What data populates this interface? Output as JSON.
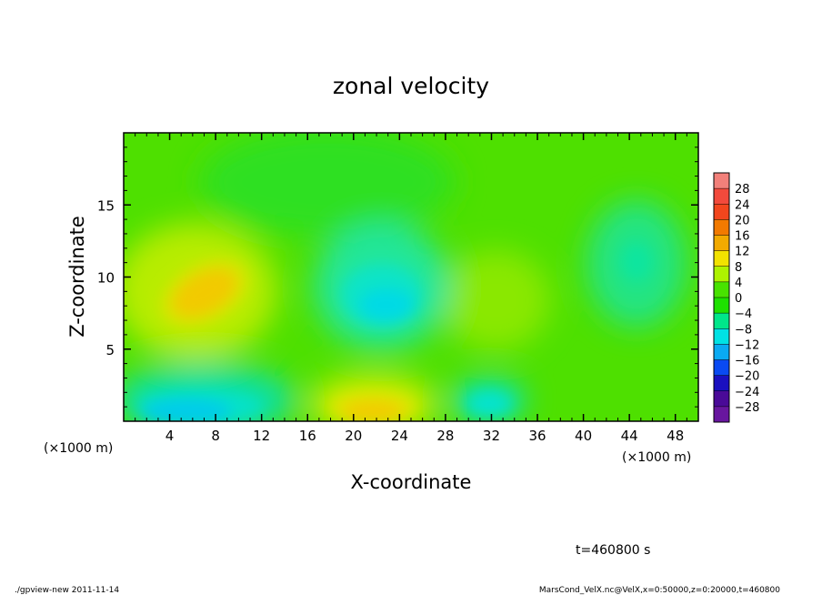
{
  "chart_data": {
    "type": "heatmap",
    "title": "zonal velocity",
    "xlabel": "X-coordinate",
    "ylabel": "Z-coordinate",
    "x_unit_left": "(×1000 m)",
    "x_unit_right": "(×1000 m)",
    "xlim": [
      0,
      50
    ],
    "ylim": [
      0,
      20
    ],
    "x_ticks": [
      4,
      8,
      12,
      16,
      20,
      24,
      28,
      32,
      36,
      40,
      44,
      48
    ],
    "y_ticks": [
      5,
      10,
      15
    ],
    "colorbar": {
      "levels": [
        28,
        24,
        20,
        16,
        12,
        8,
        4,
        0,
        -4,
        -8,
        -12,
        -16,
        -20,
        -24,
        -28
      ],
      "labels": [
        "28",
        "24",
        "20",
        "16",
        "12",
        "8",
        "4",
        "0",
        "−4",
        "−8",
        "−12",
        "−16",
        "−20",
        "−24",
        "−28"
      ],
      "colors": [
        "#f2807a",
        "#f24a3c",
        "#f2461d",
        "#f27a00",
        "#f2aa00",
        "#f2e200",
        "#aef200",
        "#48e200",
        "#1ee100",
        "#00e68a",
        "#00e2e4",
        "#0aaaf2",
        "#0a4af2",
        "#1a10c0",
        "#4a0a98",
        "#68169f"
      ]
    },
    "features": [
      {
        "x": 7.5,
        "z": 8.8,
        "value": 10
      },
      {
        "x": 22,
        "z": 0.8,
        "value": 12
      },
      {
        "x": 22.5,
        "z": 7.5,
        "value": -10
      },
      {
        "x": 6.5,
        "z": 0.6,
        "value": -12
      },
      {
        "x": 31,
        "z": 1.2,
        "value": -7
      },
      {
        "x": 44.5,
        "z": 11,
        "value": -6
      },
      {
        "x": 31.5,
        "z": 8.5,
        "value": 5
      }
    ],
    "annotation_time": "t=460800 s",
    "footer_left": "./gpview-new  2011-11-14",
    "footer_right": "MarsCond_VelX.nc@VelX,x=0:50000,z=0:20000,t=460800"
  }
}
